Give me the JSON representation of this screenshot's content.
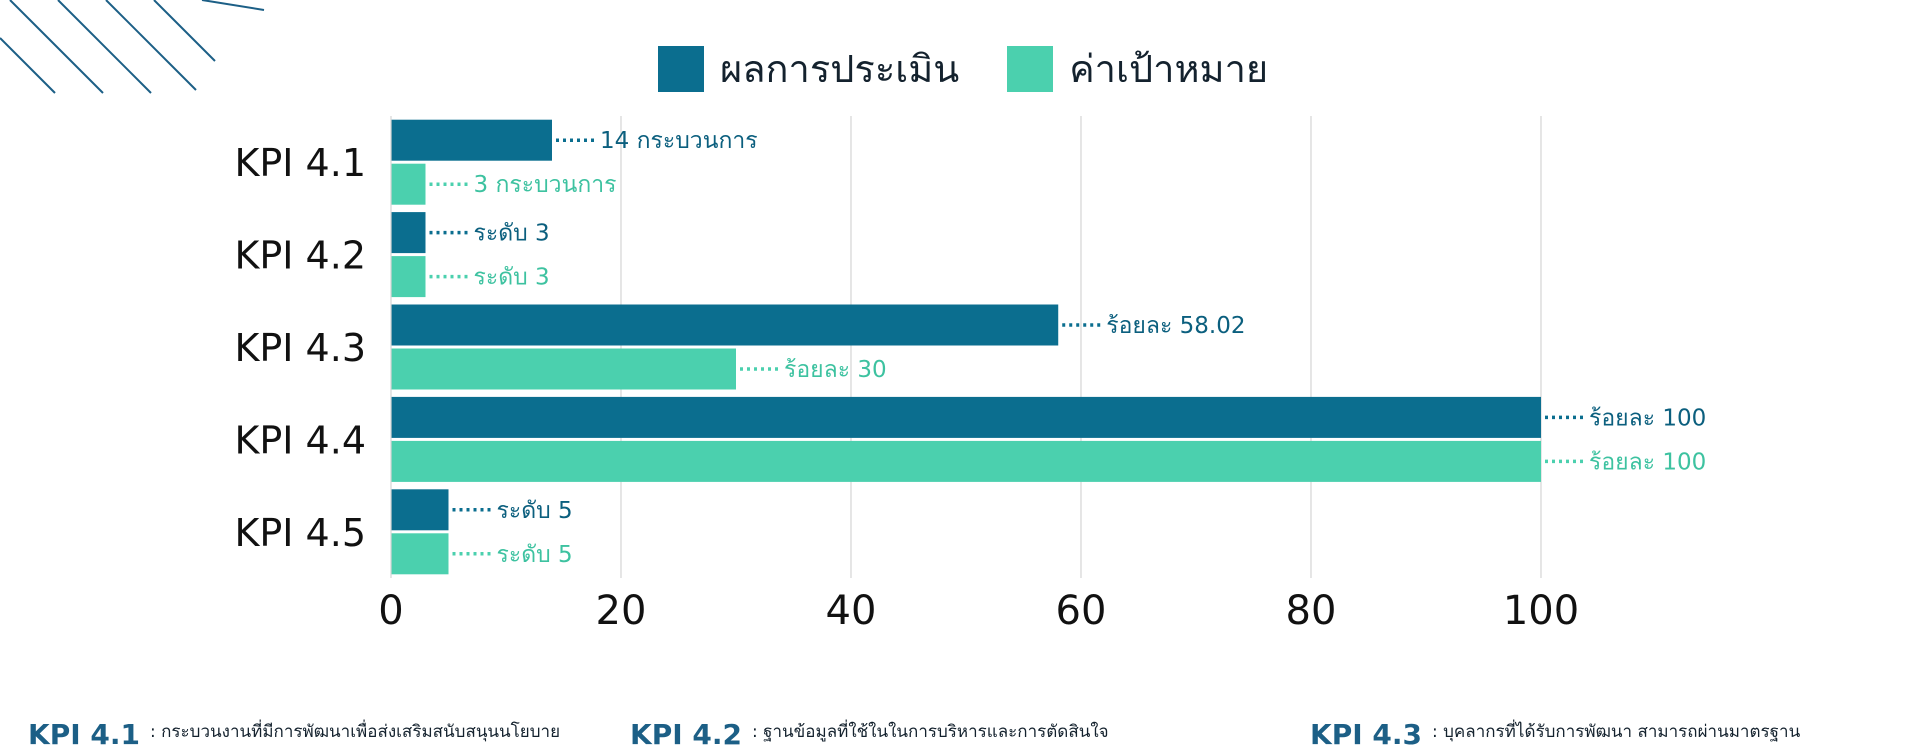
{
  "legend": [
    {
      "label": "ผลการประเมิน",
      "color": "#0b6e8f"
    },
    {
      "label": "ค่าเป้าหมาย",
      "color": "#4bd0ae"
    }
  ],
  "chart_data": {
    "type": "bar",
    "orientation": "horizontal",
    "categories": [
      "KPI 4.1",
      "KPI 4.2",
      "KPI 4.3",
      "KPI 4.4",
      "KPI 4.5"
    ],
    "series": [
      {
        "name": "ผลการประเมิน",
        "color": "#0b6e8f",
        "values": [
          14,
          3,
          58.02,
          100,
          5
        ],
        "labels": [
          "14 กระบวนการ",
          "ระดับ 3",
          "ร้อยละ 58.02",
          "ร้อยละ 100",
          "ระดับ 5"
        ]
      },
      {
        "name": "ค่าเป้าหมาย",
        "color": "#4bd0ae",
        "values": [
          3,
          3,
          30,
          100,
          5
        ],
        "labels": [
          "3 กระบวนการ",
          "ระดับ 3",
          "ร้อยละ 30",
          "ร้อยละ 100",
          "ระดับ 5"
        ]
      }
    ],
    "xlim": [
      0,
      100
    ],
    "xticks": [
      "0",
      "20",
      "40",
      "60",
      "80",
      "100"
    ],
    "grid": true,
    "legend_position": "top"
  },
  "footnotes": [
    {
      "code": "KPI 4.1",
      "text": ": กระบวนงานที่มีการพัฒนาเพื่อส่งเสริมสนับสนุนนโยบาย"
    },
    {
      "code": "KPI 4.2",
      "text": ": ฐานข้อมูลที่ใช้ในในการบริหารและการตัดสินใจ"
    },
    {
      "code": "KPI 4.3",
      "text": ": บุคลากรที่ได้รับการพัฒนา สามารถผ่านมาตรฐาน"
    }
  ]
}
